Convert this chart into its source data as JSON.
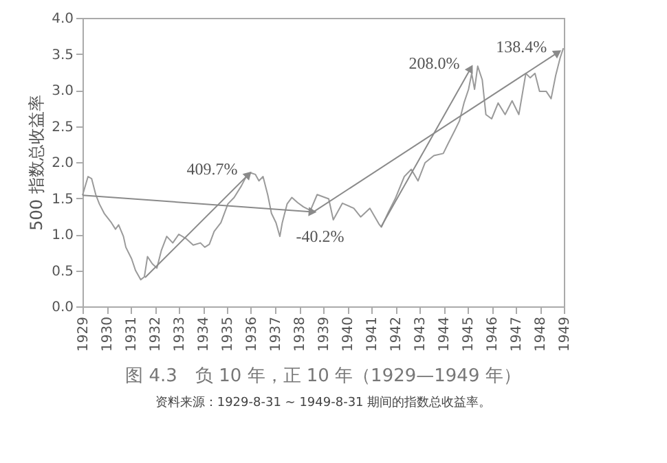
{
  "chart_data": {
    "type": "line",
    "title": "图 4.3　负 10 年，正 10 年（1929—1949 年）",
    "ylabel": "500 指数总收益率",
    "xlim": [
      1929,
      1949
    ],
    "xticks": [
      1929,
      1930,
      1931,
      1932,
      1933,
      1934,
      1935,
      1936,
      1937,
      1938,
      1939,
      1940,
      1941,
      1942,
      1943,
      1944,
      1945,
      1946,
      1947,
      1948,
      1949
    ],
    "ylim": [
      0,
      4
    ],
    "yticks": [
      {
        "value": 0,
        "label": "0.0"
      },
      0.5,
      {
        "value": 1,
        "label": "1.0"
      },
      1.5,
      {
        "value": 2,
        "label": "2.0"
      },
      2.5,
      {
        "value": 3,
        "label": "3.0"
      },
      3.5,
      {
        "value": 4,
        "label": "4.0"
      }
    ],
    "grid": false,
    "series": [
      {
        "color": "#9a9a9a",
        "x": [
          1929.0,
          1929.23,
          1929.38,
          1929.55,
          1929.7,
          1929.9,
          1930.2,
          1930.37,
          1930.5,
          1930.7,
          1930.8,
          1931.04,
          1931.2,
          1931.42,
          1931.57,
          1931.7,
          1931.9,
          1932.09,
          1932.28,
          1932.5,
          1932.75,
          1933.0,
          1933.3,
          1933.6,
          1933.9,
          1934.08,
          1934.27,
          1934.47,
          1934.75,
          1935.04,
          1935.3,
          1935.6,
          1935.8,
          1936.0,
          1936.18,
          1936.33,
          1936.5,
          1936.7,
          1936.85,
          1937.04,
          1937.2,
          1937.3,
          1937.5,
          1937.7,
          1937.93,
          1938.18,
          1938.47,
          1938.75,
          1939.23,
          1939.42,
          1939.8,
          1940.27,
          1940.56,
          1940.94,
          1941.32,
          1941.42,
          1941.7,
          1941.99,
          1942.37,
          1942.66,
          1942.94,
          1943.23,
          1943.6,
          1943.99,
          1944.18,
          1944.47,
          1944.66,
          1944.85,
          1945.04,
          1945.17,
          1945.29,
          1945.42,
          1945.61,
          1945.76,
          1946.0,
          1946.27,
          1946.56,
          1946.85,
          1947.13,
          1947.42,
          1947.6,
          1947.8,
          1947.99,
          1948.27,
          1948.47,
          1948.66,
          1948.85,
          1948.98
        ],
        "values": [
          1.54,
          1.8,
          1.77,
          1.55,
          1.42,
          1.29,
          1.16,
          1.07,
          1.13,
          0.97,
          0.82,
          0.66,
          0.5,
          0.37,
          0.41,
          0.69,
          0.59,
          0.53,
          0.78,
          0.97,
          0.88,
          1.0,
          0.94,
          0.85,
          0.88,
          0.82,
          0.86,
          1.04,
          1.16,
          1.42,
          1.51,
          1.67,
          1.8,
          1.85,
          1.83,
          1.74,
          1.8,
          1.54,
          1.29,
          1.16,
          0.97,
          1.16,
          1.42,
          1.51,
          1.44,
          1.38,
          1.33,
          1.55,
          1.49,
          1.2,
          1.43,
          1.36,
          1.24,
          1.36,
          1.14,
          1.1,
          1.3,
          1.49,
          1.8,
          1.9,
          1.74,
          1.99,
          2.09,
          2.12,
          2.25,
          2.44,
          2.57,
          2.82,
          3.01,
          3.23,
          3.01,
          3.33,
          3.14,
          2.66,
          2.6,
          2.82,
          2.66,
          2.85,
          2.66,
          3.23,
          3.17,
          3.23,
          2.98,
          2.98,
          2.88,
          3.2,
          3.45,
          3.58
        ]
      },
      {
        "color": "#8a8a8a",
        "x": [
          1929.0,
          1938.56
        ],
        "values": [
          1.54,
          1.31
        ]
      },
      {
        "color": "#8a8a8a",
        "x": [
          1931.6,
          1935.9
        ],
        "values": [
          0.4,
          1.83
        ]
      },
      {
        "color": "#8a8a8a",
        "x": [
          1941.4,
          1945.13
        ],
        "values": [
          1.1,
          3.3
        ]
      },
      {
        "color": "#8a8a8a",
        "x": [
          1938.6,
          1948.75
        ],
        "values": [
          1.31,
          3.52
        ]
      }
    ],
    "annotations": [
      {
        "text": "409.7%",
        "x": 1935.9,
        "y": 1.83
      },
      {
        "text": "-40.2%",
        "x": 1938.56,
        "y": 1.31
      },
      {
        "text": "208.0%",
        "x": 1945.13,
        "y": 3.3
      },
      {
        "text": "138.4%",
        "x": 1948.75,
        "y": 3.52
      },
      "资料来源：1929-8-31 ~ 1949-8-31 期间的指数总收益率。"
    ]
  }
}
